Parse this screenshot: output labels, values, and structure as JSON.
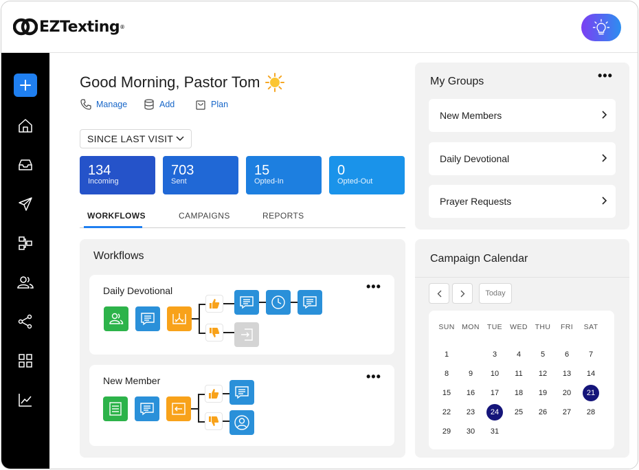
{
  "brand": {
    "name": "EZTexting",
    "registered": "®",
    "accent": "#1f7ff0"
  },
  "header": {
    "tip_icon": "lightbulb-icon"
  },
  "sidebar": {
    "items": [
      {
        "icon": "plus-icon"
      },
      {
        "icon": "home-icon"
      },
      {
        "icon": "inbox-icon"
      },
      {
        "icon": "send-icon"
      },
      {
        "icon": "workflow-icon"
      },
      {
        "icon": "contacts-icon"
      },
      {
        "icon": "integrations-icon"
      },
      {
        "icon": "apps-icon"
      },
      {
        "icon": "analytics-icon"
      }
    ]
  },
  "greeting": {
    "text": "Good Morning, Pastor Tom",
    "emoji": "☀"
  },
  "quick_actions": {
    "manage": "Manage",
    "add": "Add",
    "plan": "Plan"
  },
  "filter": {
    "selected": "SINCE LAST VISIT"
  },
  "stats": [
    {
      "value": "134",
      "label": "Incoming",
      "color": "#2553c9"
    },
    {
      "value": "703",
      "label": "Sent",
      "color": "#2068d6"
    },
    {
      "value": "15",
      "label": "Opted-In",
      "color": "#1d7fe0"
    },
    {
      "value": "0",
      "label": "Opted-Out",
      "color": "#1a93ea"
    }
  ],
  "tabs": [
    "WORKFLOWS",
    "CAMPAIGNS",
    "REPORTS"
  ],
  "workflows": {
    "title": "Workflows",
    "items": [
      {
        "name": "Daily Devotional"
      },
      {
        "name": "New Member"
      }
    ],
    "more": "•••"
  },
  "groups": {
    "title": "My Groups",
    "more": "•••",
    "items": [
      "New Members",
      "Daily Devotional",
      "Prayer Requests"
    ]
  },
  "calendar": {
    "title": "Campaign Calendar",
    "today_label": "Today",
    "weekdays": [
      "SUN",
      "MON",
      "TUE",
      "WED",
      "THU",
      "FRI",
      "SAT"
    ],
    "weeks": [
      [
        "1",
        "",
        "3",
        "4",
        "5",
        "6",
        "7"
      ],
      [
        "8",
        "9",
        "10",
        "11",
        "12",
        "13",
        "14"
      ],
      [
        "15",
        "16",
        "17",
        "18",
        "19",
        "20",
        "21"
      ],
      [
        "22",
        "23",
        "24",
        "25",
        "26",
        "27",
        "28"
      ],
      [
        "29",
        "30",
        "31",
        "",
        "",
        "",
        ""
      ]
    ],
    "highlighted": [
      "21",
      "24"
    ],
    "highlight_color": "#15157a"
  }
}
